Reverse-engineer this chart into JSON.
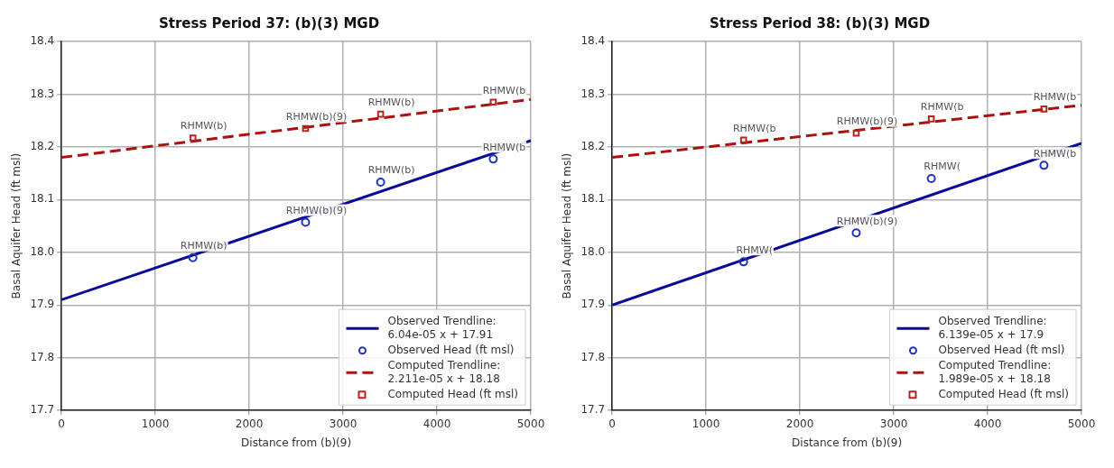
{
  "chart_data": [
    {
      "type": "scatter",
      "title": "Stress Period 37: (b)(3) MGD",
      "xlabel": "Distance from (b)(9)",
      "ylabel": "Basal Aquifer Head (ft msl)",
      "xlim": [
        0,
        5000
      ],
      "ylim": [
        17.7,
        18.4
      ],
      "xticks": [
        0,
        1000,
        2000,
        3000,
        4000,
        5000
      ],
      "yticks": [
        17.7,
        17.8,
        17.9,
        {
          "value": 18,
          "label": "18.0"
        },
        18.1,
        18.2,
        18.3,
        18.4
      ],
      "grid": true,
      "legend": "bottom right",
      "series": [
        {
          "name": "Observed Trendline:\n6.04e-05 x + 17.91",
          "type": "line",
          "color": "#0a0a9a",
          "line_style": "solid",
          "marker": "none",
          "x": [
            0,
            5000
          ],
          "values": [
            17.91,
            18.212
          ]
        },
        {
          "name": "Observed Head (ft msl)",
          "type": "scatter",
          "color": "#2233bb",
          "marker": "circle",
          "x": [
            1400,
            2600,
            3400,
            4600
          ],
          "values": [
            17.99,
            18.057,
            18.133,
            18.177
          ]
        },
        {
          "name": "Computed Trendline:\n2.211e-05 x + 18.18",
          "type": "line",
          "color": "#aa1111",
          "line_style": "dashed",
          "marker": "none",
          "x": [
            0,
            5000
          ],
          "values": [
            18.18,
            18.29
          ]
        },
        {
          "name": "Computed Head (ft msl)",
          "type": "scatter",
          "color": "#bb2222",
          "marker": "square",
          "x": [
            1400,
            2600,
            3400,
            4600
          ],
          "values": [
            18.217,
            18.235,
            18.262,
            18.285
          ]
        }
      ],
      "annotations": [
        {
          "text": "RHMW(b)",
          "x": 1400,
          "y": 17.99
        },
        {
          "text": "RHMW(b)(9)",
          "x": 2600,
          "y": 18.057
        },
        {
          "text": "RHMW(b)",
          "x": 3400,
          "y": 18.133
        },
        {
          "text": "RHMW(b",
          "x": 4600,
          "y": 18.177
        },
        {
          "text": "RHMW(b)",
          "x": 1400,
          "y": 18.217
        },
        {
          "text": "RHMW(b)(9)",
          "x": 2600,
          "y": 18.235
        },
        {
          "text": "RHMW(b)",
          "x": 3400,
          "y": 18.262
        },
        {
          "text": "RHMW(b",
          "x": 4600,
          "y": 18.285
        }
      ]
    },
    {
      "type": "scatter",
      "title": "Stress Period 38: (b)(3) MGD",
      "xlabel": "Distance from (b)(9)",
      "ylabel": "Basal Aquifer Head (ft msl)",
      "xlim": [
        0,
        5000
      ],
      "ylim": [
        17.7,
        18.4
      ],
      "xticks": [
        0,
        1000,
        2000,
        3000,
        4000,
        5000
      ],
      "yticks": [
        17.7,
        17.8,
        17.9,
        {
          "value": 18,
          "label": "18.0"
        },
        18.1,
        18.2,
        18.3,
        18.4
      ],
      "grid": true,
      "legend": "bottom right",
      "series": [
        {
          "name": "Observed Trendline:\n6.139e-05 x + 17.9",
          "type": "line",
          "color": "#0a0a9a",
          "line_style": "solid",
          "marker": "none",
          "x": [
            0,
            5000
          ],
          "values": [
            17.9,
            18.207
          ]
        },
        {
          "name": "Observed Head (ft msl)",
          "type": "scatter",
          "color": "#2233bb",
          "marker": "circle",
          "x": [
            1400,
            2600,
            3400,
            4600
          ],
          "values": [
            17.982,
            18.037,
            18.14,
            18.165
          ]
        },
        {
          "name": "Computed Trendline:\n1.989e-05 x + 18.18",
          "type": "line",
          "color": "#aa1111",
          "line_style": "dashed",
          "marker": "none",
          "x": [
            0,
            5000
          ],
          "values": [
            18.18,
            18.279
          ]
        },
        {
          "name": "Computed Head (ft msl)",
          "type": "scatter",
          "color": "#bb2222",
          "marker": "square",
          "x": [
            1400,
            2600,
            3400,
            4600
          ],
          "values": [
            18.213,
            18.226,
            18.253,
            18.272
          ]
        }
      ],
      "annotations": [
        {
          "text": "RHMW(",
          "x": 1400,
          "y": 17.982
        },
        {
          "text": "RHMW(b)(9)",
          "x": 2600,
          "y": 18.037
        },
        {
          "text": "RHMW(",
          "x": 3400,
          "y": 18.14
        },
        {
          "text": "RHMW(b",
          "x": 4600,
          "y": 18.165
        },
        {
          "text": "RHMW(b",
          "x": 1400,
          "y": 18.213
        },
        {
          "text": "RHMW(b)(9)",
          "x": 2600,
          "y": 18.226
        },
        {
          "text": "RHMW(b",
          "x": 3400,
          "y": 18.253
        },
        {
          "text": "RHMW(b",
          "x": 4600,
          "y": 18.272
        }
      ]
    }
  ]
}
